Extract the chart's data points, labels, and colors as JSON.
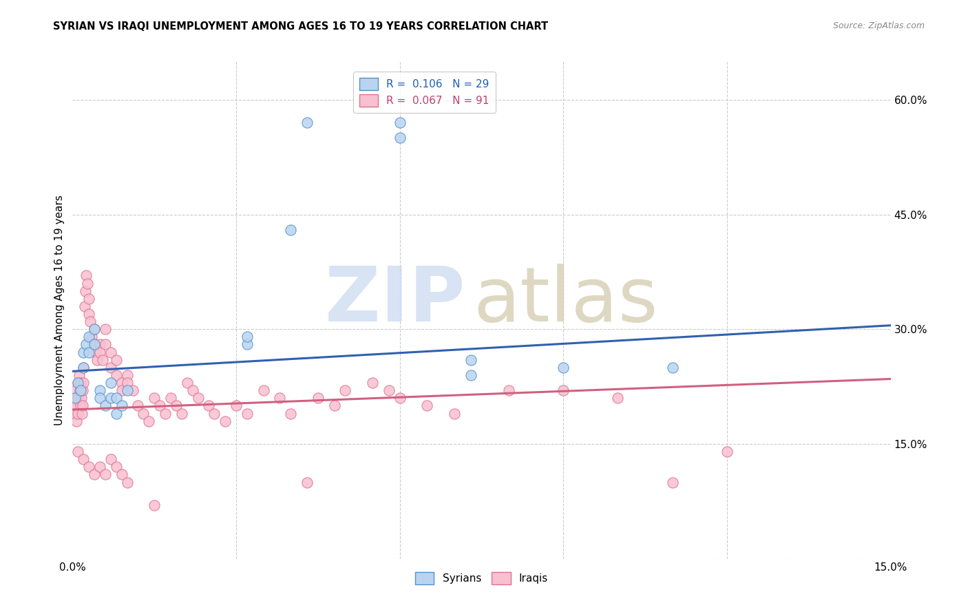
{
  "title": "SYRIAN VS IRAQI UNEMPLOYMENT AMONG AGES 16 TO 19 YEARS CORRELATION CHART",
  "source": "Source: ZipAtlas.com",
  "ylabel": "Unemployment Among Ages 16 to 19 years",
  "xlim": [
    0.0,
    0.15
  ],
  "ylim": [
    0.0,
    0.65
  ],
  "xtick_positions": [
    0.0,
    0.03,
    0.06,
    0.09,
    0.12,
    0.15
  ],
  "xtick_labels": [
    "0.0%",
    "",
    "",
    "",
    "",
    "15.0%"
  ],
  "ytick_positions": [
    0.0,
    0.15,
    0.3,
    0.45,
    0.6
  ],
  "ytick_labels": [
    "",
    "15.0%",
    "30.0%",
    "45.0%",
    "60.0%"
  ],
  "blue_face": "#b8d4f0",
  "blue_edge": "#5590c8",
  "pink_face": "#f8c0d0",
  "pink_edge": "#e07090",
  "blue_line": "#3060b0",
  "pink_line": "#d06080",
  "grid_color": "#cccccc",
  "watermark_zip_color": "#c8d8f0",
  "watermark_atlas_color": "#d0c8a8",
  "blue_line_x0": 0.0,
  "blue_line_y0": 0.245,
  "blue_line_x1": 0.15,
  "blue_line_y1": 0.305,
  "pink_line_x0": 0.0,
  "pink_line_y0": 0.195,
  "pink_line_x1": 0.15,
  "pink_line_y1": 0.235,
  "syrians_x": [
    0.0005,
    0.001,
    0.0015,
    0.002,
    0.002,
    0.0025,
    0.003,
    0.003,
    0.004,
    0.004,
    0.005,
    0.005,
    0.006,
    0.007,
    0.007,
    0.008,
    0.008,
    0.009,
    0.01,
    0.032,
    0.032,
    0.04,
    0.043,
    0.06,
    0.06,
    0.073,
    0.073,
    0.09,
    0.11
  ],
  "syrians_y": [
    0.21,
    0.23,
    0.22,
    0.27,
    0.25,
    0.28,
    0.29,
    0.27,
    0.3,
    0.28,
    0.22,
    0.21,
    0.2,
    0.21,
    0.23,
    0.19,
    0.21,
    0.2,
    0.22,
    0.28,
    0.29,
    0.43,
    0.57,
    0.57,
    0.55,
    0.26,
    0.24,
    0.25,
    0.25
  ],
  "iraqis_x": [
    0.0002,
    0.0003,
    0.0004,
    0.0005,
    0.0006,
    0.0007,
    0.0008,
    0.0009,
    0.001,
    0.001,
    0.0012,
    0.0013,
    0.0014,
    0.0015,
    0.0016,
    0.0017,
    0.0018,
    0.0019,
    0.002,
    0.002,
    0.0022,
    0.0023,
    0.0025,
    0.0027,
    0.003,
    0.003,
    0.0032,
    0.0035,
    0.004,
    0.004,
    0.0042,
    0.0045,
    0.005,
    0.005,
    0.0055,
    0.006,
    0.006,
    0.007,
    0.007,
    0.008,
    0.008,
    0.009,
    0.009,
    0.01,
    0.01,
    0.011,
    0.012,
    0.013,
    0.014,
    0.015,
    0.016,
    0.017,
    0.018,
    0.019,
    0.02,
    0.021,
    0.022,
    0.023,
    0.025,
    0.026,
    0.028,
    0.03,
    0.032,
    0.035,
    0.038,
    0.04,
    0.043,
    0.045,
    0.048,
    0.05,
    0.055,
    0.058,
    0.06,
    0.065,
    0.07,
    0.08,
    0.09,
    0.1,
    0.11,
    0.12,
    0.001,
    0.002,
    0.003,
    0.004,
    0.005,
    0.006,
    0.007,
    0.008,
    0.009,
    0.01,
    0.015
  ],
  "iraqis_y": [
    0.2,
    0.19,
    0.21,
    0.22,
    0.2,
    0.18,
    0.21,
    0.19,
    0.23,
    0.21,
    0.24,
    0.22,
    0.2,
    0.23,
    0.21,
    0.19,
    0.22,
    0.2,
    0.25,
    0.23,
    0.33,
    0.35,
    0.37,
    0.36,
    0.34,
    0.32,
    0.31,
    0.29,
    0.3,
    0.28,
    0.27,
    0.26,
    0.28,
    0.27,
    0.26,
    0.3,
    0.28,
    0.27,
    0.25,
    0.26,
    0.24,
    0.23,
    0.22,
    0.24,
    0.23,
    0.22,
    0.2,
    0.19,
    0.18,
    0.21,
    0.2,
    0.19,
    0.21,
    0.2,
    0.19,
    0.23,
    0.22,
    0.21,
    0.2,
    0.19,
    0.18,
    0.2,
    0.19,
    0.22,
    0.21,
    0.19,
    0.1,
    0.21,
    0.2,
    0.22,
    0.23,
    0.22,
    0.21,
    0.2,
    0.19,
    0.22,
    0.22,
    0.21,
    0.1,
    0.14,
    0.14,
    0.13,
    0.12,
    0.11,
    0.12,
    0.11,
    0.13,
    0.12,
    0.11,
    0.1,
    0.07
  ]
}
